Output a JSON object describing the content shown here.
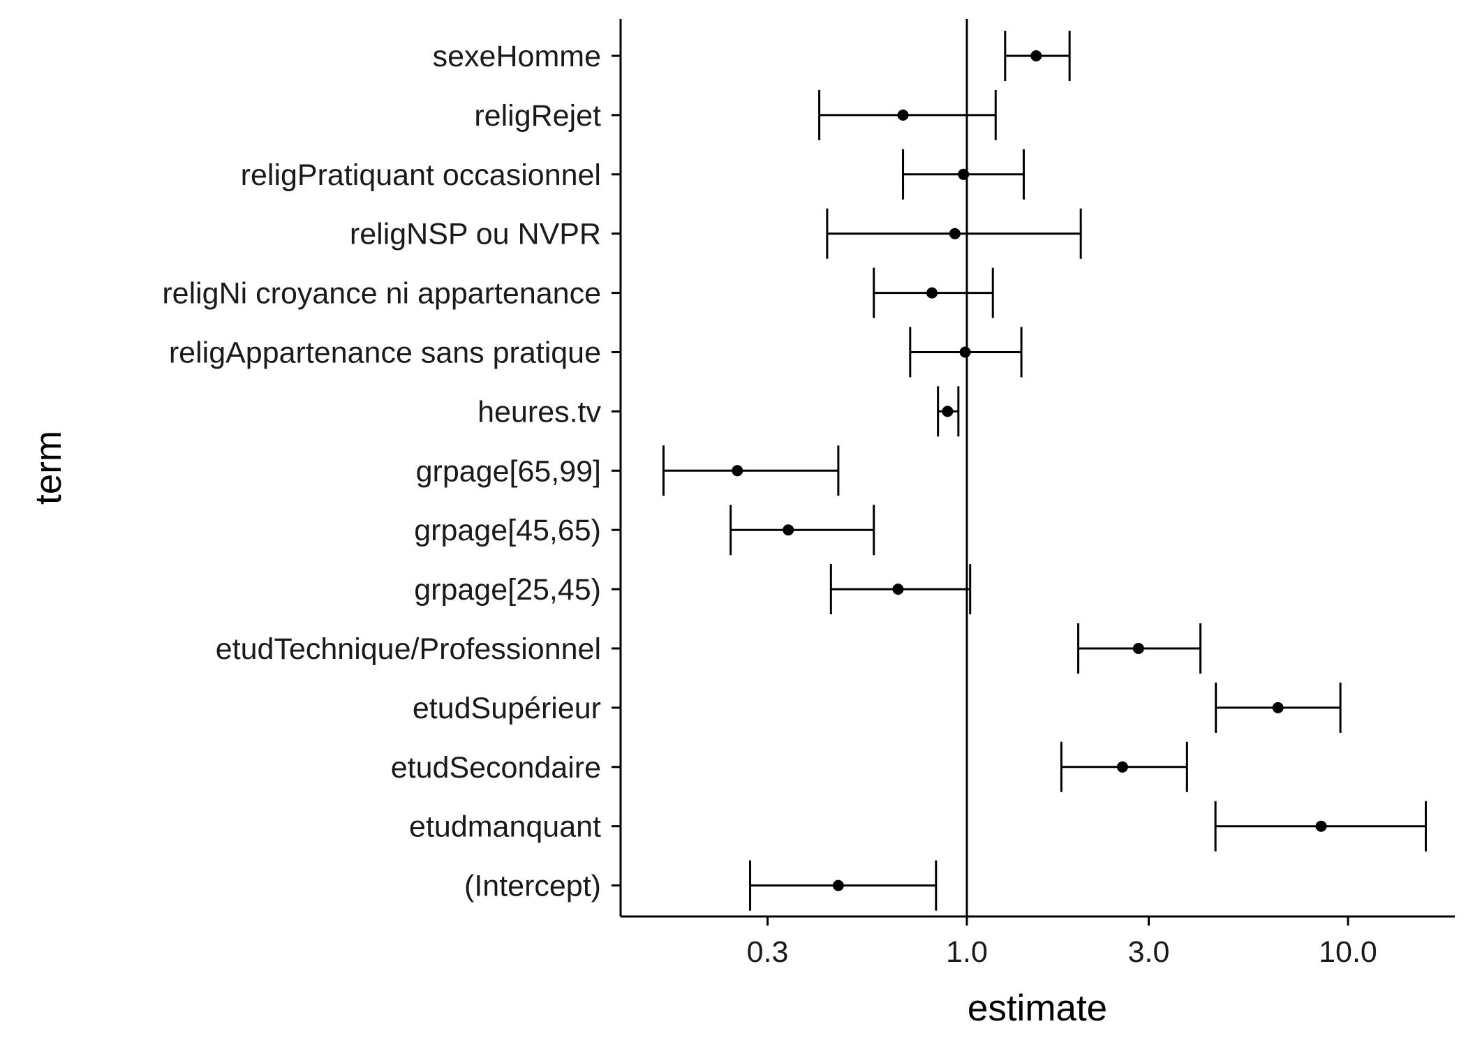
{
  "chart_data": {
    "type": "scatter",
    "subtype": "coefficient plot with confidence intervals",
    "xlabel": "estimate",
    "ylabel": "term",
    "xscale": "log10",
    "xlim": [
      0.14,
      22
    ],
    "xticks": [
      0.3,
      1.0,
      3.0,
      10.0
    ],
    "xtick_labels": [
      "0.3",
      "1.0",
      "3.0",
      "10.0"
    ],
    "reference_line_x": 1.0,
    "grid": false,
    "legend": "none",
    "colors": {
      "points": "#000000",
      "axes": "#000000",
      "background": "#ffffff"
    },
    "terms": [
      {
        "term": "sexeHomme",
        "estimate": 1.52,
        "conf_low": 1.26,
        "conf_high": 1.86
      },
      {
        "term": "religRejet",
        "estimate": 0.68,
        "conf_low": 0.41,
        "conf_high": 1.19
      },
      {
        "term": "religPratiquant occasionnel",
        "estimate": 0.98,
        "conf_low": 0.68,
        "conf_high": 1.41
      },
      {
        "term": "religNSP ou NVPR",
        "estimate": 0.93,
        "conf_low": 0.43,
        "conf_high": 1.99
      },
      {
        "term": "religNi croyance ni appartenance",
        "estimate": 0.81,
        "conf_low": 0.57,
        "conf_high": 1.17
      },
      {
        "term": "religAppartenance sans pratique",
        "estimate": 0.99,
        "conf_low": 0.71,
        "conf_high": 1.39
      },
      {
        "term": "heures.tv",
        "estimate": 0.89,
        "conf_low": 0.84,
        "conf_high": 0.95
      },
      {
        "term": "grpage[65,99]",
        "estimate": 0.25,
        "conf_low": 0.16,
        "conf_high": 0.46
      },
      {
        "term": "grpage[45,65)",
        "estimate": 0.34,
        "conf_low": 0.24,
        "conf_high": 0.57
      },
      {
        "term": "grpage[25,45)",
        "estimate": 0.66,
        "conf_low": 0.44,
        "conf_high": 1.02
      },
      {
        "term": "etudTechnique/Professionnel",
        "estimate": 2.82,
        "conf_low": 1.96,
        "conf_high": 4.1
      },
      {
        "term": "etudSupérieur",
        "estimate": 6.55,
        "conf_low": 4.5,
        "conf_high": 9.55
      },
      {
        "term": "etudSecondaire",
        "estimate": 2.56,
        "conf_low": 1.77,
        "conf_high": 3.78
      },
      {
        "term": "etudmanquant",
        "estimate": 8.5,
        "conf_low": 4.49,
        "conf_high": 16.0
      },
      {
        "term": "(Intercept)",
        "estimate": 0.46,
        "conf_low": 0.27,
        "conf_high": 0.83
      }
    ]
  }
}
